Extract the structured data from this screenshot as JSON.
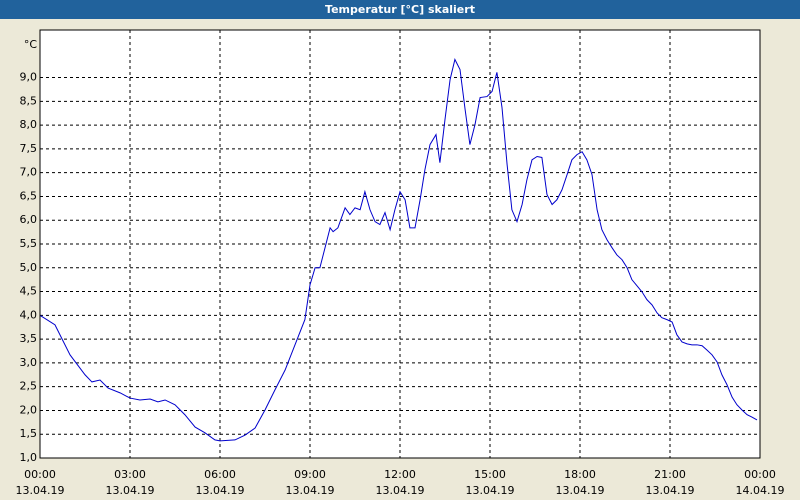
{
  "chart_data": {
    "type": "line",
    "title": "Temperatur [°C] skaliert",
    "unit_label": "°C",
    "series": [
      {
        "name": "Temperatur",
        "color": "#0000cc",
        "x": [
          0,
          0.5,
          1.0,
          1.5,
          1.73,
          2.0,
          2.27,
          2.67,
          3.0,
          3.33,
          3.67,
          3.93,
          4.17,
          4.5,
          4.83,
          5.17,
          5.5,
          5.83,
          6.0,
          6.5,
          6.83,
          7.17,
          7.5,
          7.83,
          8.17,
          8.5,
          8.83,
          9.0,
          9.17,
          9.33,
          9.67,
          9.77,
          9.93,
          10.17,
          10.33,
          10.5,
          10.67,
          10.83,
          11.0,
          11.17,
          11.33,
          11.5,
          11.67,
          11.83,
          12.0,
          12.17,
          12.33,
          12.5,
          12.67,
          12.83,
          13.0,
          13.2,
          13.33,
          13.5,
          13.67,
          13.83,
          14.0,
          14.17,
          14.33,
          14.5,
          14.67,
          14.9,
          15.07,
          15.23,
          15.4,
          15.57,
          15.73,
          15.9,
          16.07,
          16.23,
          16.4,
          16.57,
          16.73,
          16.9,
          17.07,
          17.23,
          17.4,
          17.57,
          17.73,
          17.9,
          18.07,
          18.23,
          18.4,
          18.57,
          18.73,
          18.9,
          19.07,
          19.23,
          19.4,
          19.57,
          19.73,
          19.9,
          20.07,
          20.23,
          20.4,
          20.57,
          20.73,
          20.9,
          21.07,
          21.23,
          21.4,
          21.57,
          21.73,
          21.9,
          22.07,
          22.23,
          22.4,
          22.57,
          22.73,
          22.9,
          23.07,
          23.23,
          23.4,
          23.57,
          23.73,
          23.9
        ],
        "values": [
          4.0,
          3.8,
          3.17,
          2.75,
          2.6,
          2.64,
          2.47,
          2.37,
          2.26,
          2.22,
          2.24,
          2.18,
          2.22,
          2.12,
          1.91,
          1.65,
          1.53,
          1.38,
          1.36,
          1.38,
          1.48,
          1.63,
          2.01,
          2.43,
          2.85,
          3.38,
          3.91,
          4.64,
          5.0,
          5.0,
          5.84,
          5.76,
          5.84,
          6.26,
          6.12,
          6.26,
          6.22,
          6.6,
          6.22,
          5.97,
          5.91,
          6.16,
          5.8,
          6.22,
          6.6,
          6.43,
          5.84,
          5.84,
          6.43,
          7.06,
          7.59,
          7.8,
          7.21,
          8.12,
          8.96,
          9.38,
          9.17,
          8.33,
          7.59,
          8.01,
          8.58,
          8.6,
          8.71,
          9.11,
          8.37,
          7.17,
          6.22,
          5.97,
          6.33,
          6.85,
          7.27,
          7.34,
          7.32,
          6.54,
          6.33,
          6.43,
          6.64,
          6.96,
          7.27,
          7.38,
          7.44,
          7.27,
          6.96,
          6.22,
          5.8,
          5.59,
          5.42,
          5.27,
          5.17,
          5.0,
          4.75,
          4.62,
          4.49,
          4.33,
          4.22,
          4.05,
          3.95,
          3.91,
          3.86,
          3.59,
          3.44,
          3.4,
          3.38,
          3.38,
          3.36,
          3.27,
          3.17,
          3.02,
          2.75,
          2.54,
          2.28,
          2.12,
          2.01,
          1.91,
          1.86,
          1.8
        ]
      }
    ],
    "xlim": [
      0,
      24
    ],
    "xticks": [
      {
        "value": 0,
        "label": "00:00",
        "date": "13.04.19"
      },
      {
        "value": 3,
        "label": "03:00",
        "date": "13.04.19"
      },
      {
        "value": 6,
        "label": "06:00",
        "date": "13.04.19"
      },
      {
        "value": 9,
        "label": "09:00",
        "date": "13.04.19"
      },
      {
        "value": 12,
        "label": "12:00",
        "date": "13.04.19"
      },
      {
        "value": 15,
        "label": "15:00",
        "date": "13.04.19"
      },
      {
        "value": 18,
        "label": "18:00",
        "date": "13.04.19"
      },
      {
        "value": 21,
        "label": "21:00",
        "date": "13.04.19"
      },
      {
        "value": 24,
        "label": "00:00",
        "date": "14.04.19"
      }
    ],
    "ylim": [
      1,
      10
    ],
    "yticks": [
      {
        "value": 1,
        "label": "1,0"
      },
      {
        "value": 1.5,
        "label": "1,5"
      },
      {
        "value": 2,
        "label": "2,0"
      },
      {
        "value": 2.5,
        "label": "2,5"
      },
      {
        "value": 3,
        "label": "3,0"
      },
      {
        "value": 3.5,
        "label": "3,5"
      },
      {
        "value": 4,
        "label": "4,0"
      },
      {
        "value": 4.5,
        "label": "4,5"
      },
      {
        "value": 5,
        "label": "5,0"
      },
      {
        "value": 5.5,
        "label": "5,5"
      },
      {
        "value": 6,
        "label": "6,0"
      },
      {
        "value": 6.5,
        "label": "6,5"
      },
      {
        "value": 7,
        "label": "7,0"
      },
      {
        "value": 7.5,
        "label": "7,5"
      },
      {
        "value": 8,
        "label": "8,0"
      },
      {
        "value": 8.5,
        "label": "8,5"
      },
      {
        "value": 9,
        "label": "9,0"
      }
    ],
    "grid": true
  }
}
